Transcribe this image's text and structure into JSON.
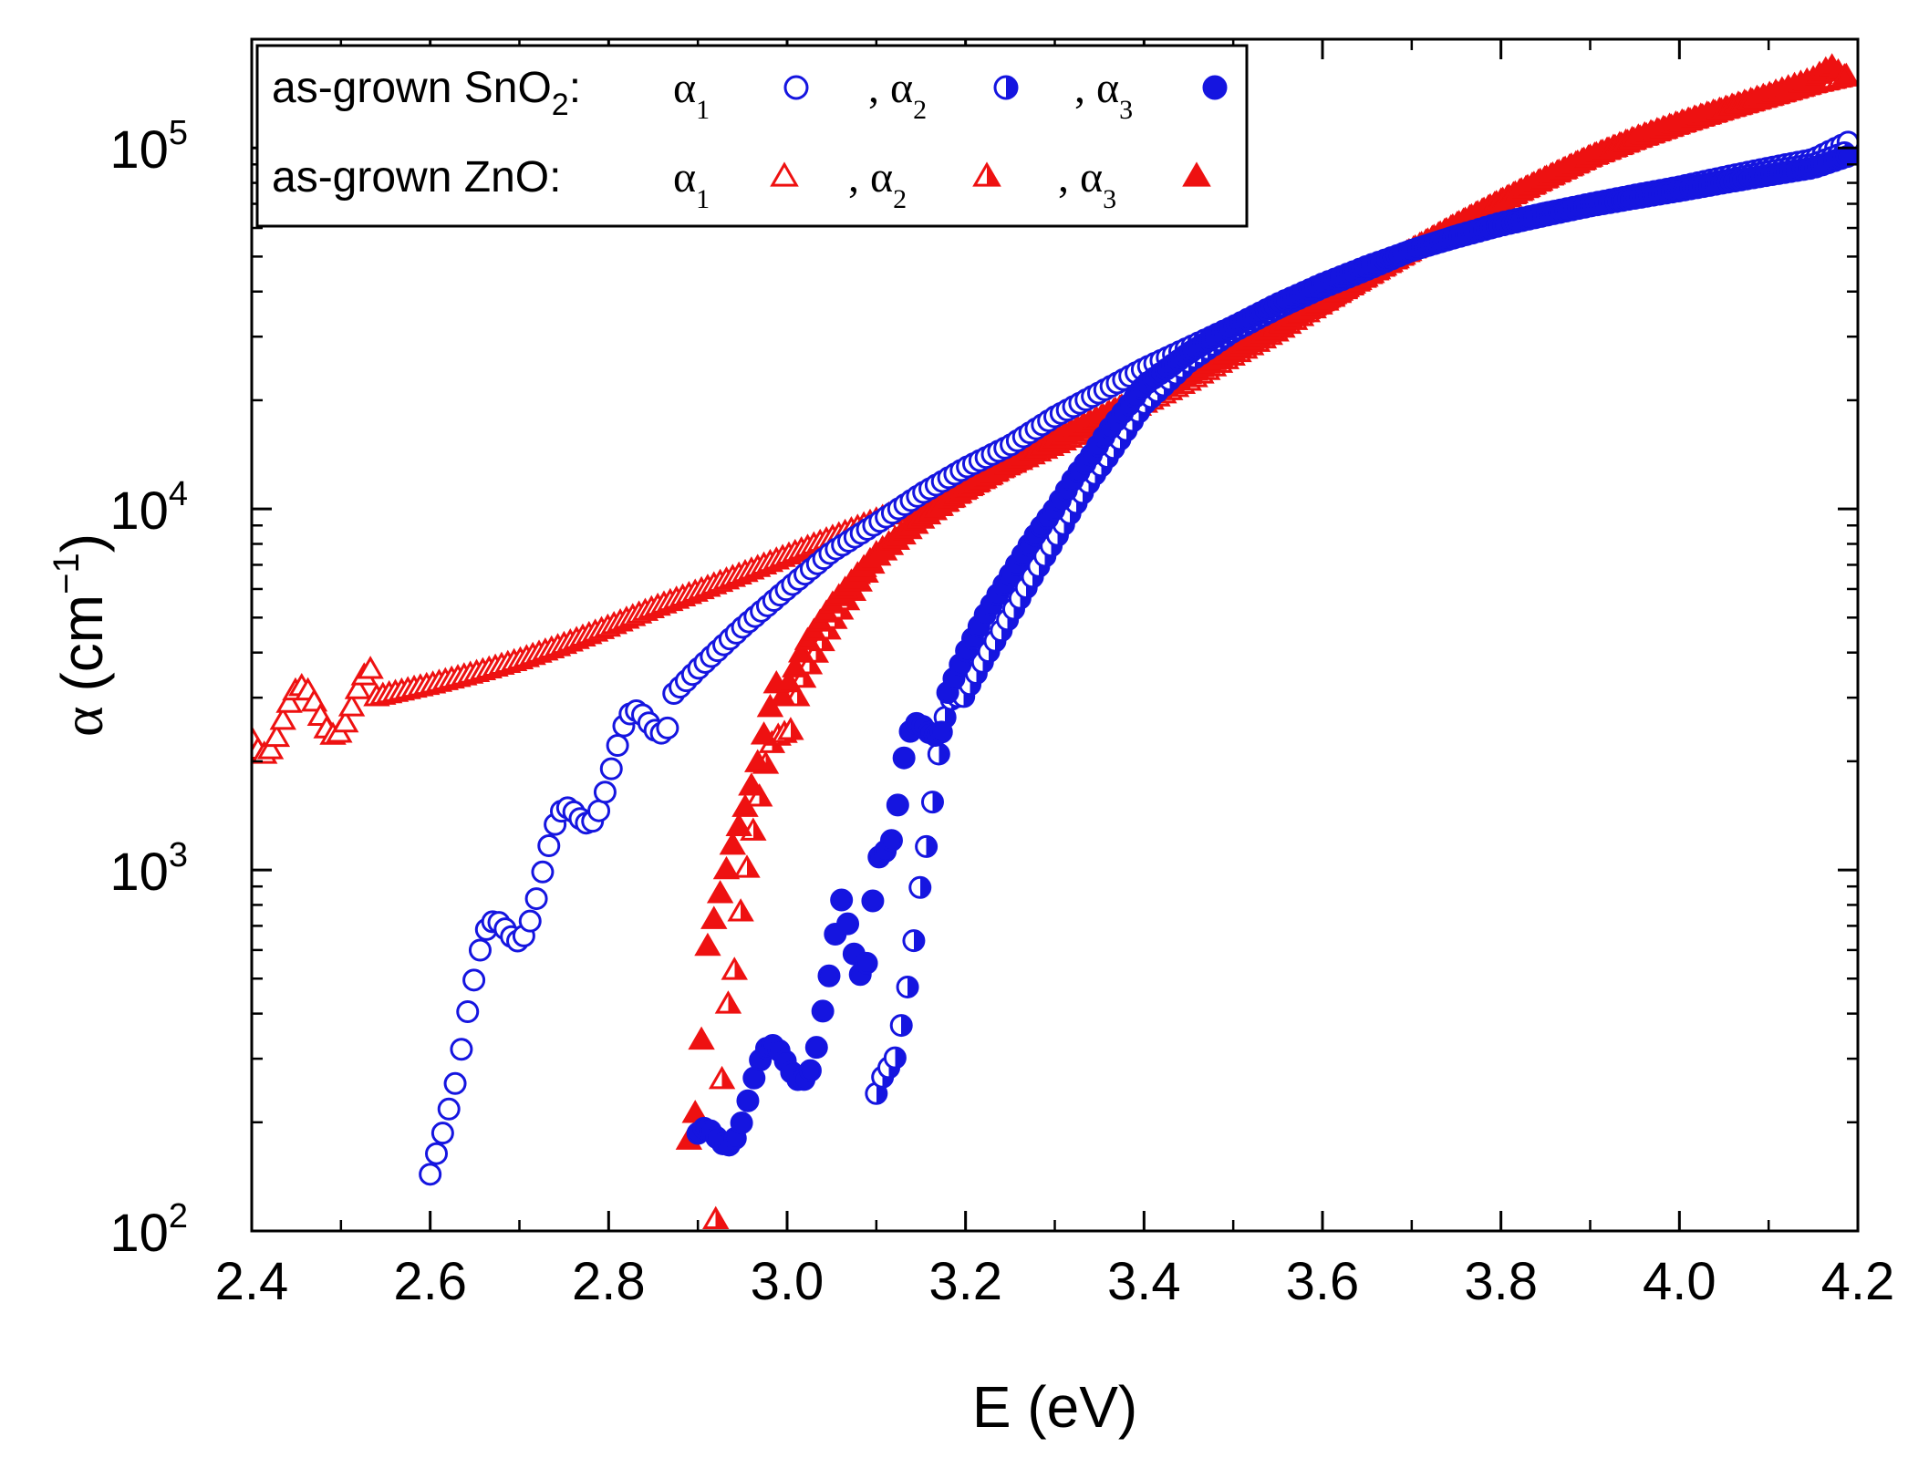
{
  "chart_data": {
    "type": "scatter",
    "xlabel": "E (eV)",
    "ylabel_symbol": "α",
    "ylabel_unit": "(cm",
    "ylabel_exp": "−1",
    "ylabel_close": ")",
    "xlim": [
      2.4,
      4.2
    ],
    "ylim": [
      100,
      200000
    ],
    "yscale": "log",
    "x_ticks": [
      "2.4",
      "2.6",
      "2.8",
      "3.0",
      "3.2",
      "3.4",
      "3.6",
      "3.8",
      "4.0",
      "4.2"
    ],
    "y_ticks": [
      {
        "base": "10",
        "exp": "2",
        "value": 100
      },
      {
        "base": "10",
        "exp": "3",
        "value": 1000
      },
      {
        "base": "10",
        "exp": "4",
        "value": 10000
      },
      {
        "base": "10",
        "exp": "5",
        "value": 100000
      }
    ],
    "legend": {
      "placement": "top-left",
      "rows": [
        {
          "material": "as-grown SnO",
          "subscript": "2",
          "suffix": ":",
          "color": "#1515e0",
          "marker": "circle",
          "entries": [
            {
              "sym": "α",
              "sub": "1",
              "fill": "open"
            },
            {
              "sym": ", α",
              "sub": "2",
              "fill": "half"
            },
            {
              "sym": ", α",
              "sub": "3",
              "fill": "full"
            }
          ]
        },
        {
          "material": "as-grown ZnO",
          "subscript": "",
          "suffix": ":",
          "color": "#ee1111",
          "marker": "triangle",
          "entries": [
            {
              "sym": "α",
              "sub": "1",
              "fill": "open"
            },
            {
              "sym": ", α",
              "sub": "2",
              "fill": "half"
            },
            {
              "sym": ", α",
              "sub": "3",
              "fill": "full"
            }
          ]
        }
      ]
    },
    "series": [
      {
        "name": "SnO2 α1",
        "color": "#1515e0",
        "marker": "circle",
        "fill": "open",
        "curve": [
          [
            2.6,
            130
          ],
          [
            2.62,
            250
          ],
          [
            2.64,
            420
          ],
          [
            2.66,
            560
          ],
          [
            2.7,
            750
          ],
          [
            2.75,
            1250
          ],
          [
            2.8,
            1900
          ],
          [
            2.85,
            2700
          ],
          [
            2.9,
            3600
          ],
          [
            2.95,
            4700
          ],
          [
            3.0,
            6000
          ],
          [
            3.05,
            7600
          ],
          [
            3.1,
            9100
          ],
          [
            3.15,
            11000
          ],
          [
            3.2,
            13000
          ],
          [
            3.25,
            15000
          ],
          [
            3.3,
            18000
          ],
          [
            3.35,
            21000
          ],
          [
            3.4,
            24500
          ],
          [
            3.45,
            28000
          ],
          [
            3.5,
            32000
          ],
          [
            3.55,
            36000
          ],
          [
            3.6,
            41000
          ],
          [
            3.65,
            46000
          ],
          [
            3.7,
            52000
          ],
          [
            3.75,
            57000
          ],
          [
            3.8,
            62000
          ],
          [
            3.85,
            66000
          ],
          [
            3.9,
            70000
          ],
          [
            3.95,
            74000
          ],
          [
            4.0,
            78000
          ],
          [
            4.05,
            83000
          ],
          [
            4.1,
            88000
          ],
          [
            4.15,
            93000
          ],
          [
            4.19,
            104000
          ]
        ]
      },
      {
        "name": "SnO2 α2",
        "color": "#1515e0",
        "marker": "circle",
        "fill": "half",
        "curve": [
          [
            3.1,
            200
          ],
          [
            3.12,
            300
          ],
          [
            3.14,
            700
          ],
          [
            3.15,
            1050
          ],
          [
            3.16,
            1300
          ],
          [
            3.17,
            1800
          ],
          [
            3.18,
            2400
          ],
          [
            3.2,
            3100
          ],
          [
            3.22,
            3800
          ],
          [
            3.24,
            4600
          ],
          [
            3.26,
            5600
          ],
          [
            3.28,
            6800
          ],
          [
            3.3,
            8200
          ],
          [
            3.32,
            10000
          ],
          [
            3.34,
            12000
          ],
          [
            3.36,
            14000
          ],
          [
            3.38,
            16500
          ],
          [
            3.4,
            19500
          ],
          [
            3.45,
            25500
          ],
          [
            3.5,
            31000
          ],
          [
            3.55,
            36000
          ],
          [
            3.6,
            41500
          ],
          [
            3.65,
            46500
          ],
          [
            3.7,
            52000
          ],
          [
            3.75,
            57000
          ],
          [
            3.8,
            61500
          ],
          [
            3.85,
            66000
          ],
          [
            3.9,
            69500
          ],
          [
            3.95,
            73500
          ],
          [
            4.0,
            77000
          ],
          [
            4.05,
            81000
          ],
          [
            4.1,
            86000
          ],
          [
            4.15,
            90000
          ],
          [
            4.19,
            98000
          ]
        ]
      },
      {
        "name": "SnO2 α3",
        "color": "#1515e0",
        "marker": "circle",
        "fill": "full",
        "curve": [
          [
            2.9,
            155
          ],
          [
            2.96,
            250
          ],
          [
            3.03,
            330
          ],
          [
            3.05,
            480
          ],
          [
            3.06,
            700
          ],
          [
            3.08,
            520
          ],
          [
            3.09,
            650
          ],
          [
            3.1,
            1300
          ],
          [
            3.12,
            1200
          ],
          [
            3.13,
            1700
          ],
          [
            3.14,
            2100
          ],
          [
            3.16,
            2500
          ],
          [
            3.18,
            3100
          ],
          [
            3.2,
            4000
          ],
          [
            3.22,
            5000
          ],
          [
            3.24,
            6000
          ],
          [
            3.26,
            7200
          ],
          [
            3.28,
            8600
          ],
          [
            3.3,
            10000
          ],
          [
            3.32,
            12000
          ],
          [
            3.34,
            14000
          ],
          [
            3.36,
            16500
          ],
          [
            3.38,
            19000
          ],
          [
            3.4,
            22000
          ],
          [
            3.45,
            27000
          ],
          [
            3.5,
            32000
          ],
          [
            3.55,
            37000
          ],
          [
            3.6,
            42000
          ],
          [
            3.65,
            47000
          ],
          [
            3.7,
            52000
          ],
          [
            3.75,
            56500
          ],
          [
            3.8,
            61000
          ],
          [
            3.85,
            65000
          ],
          [
            3.9,
            69000
          ],
          [
            3.95,
            72500
          ],
          [
            4.0,
            76000
          ],
          [
            4.05,
            80000
          ],
          [
            4.1,
            84000
          ],
          [
            4.15,
            88000
          ],
          [
            4.19,
            95000
          ]
        ]
      },
      {
        "name": "ZnO α1",
        "color": "#ee1111",
        "marker": "triangle",
        "fill": "open",
        "curve": [
          [
            2.4,
            2450
          ],
          [
            2.45,
            2650
          ],
          [
            2.5,
            2850
          ],
          [
            2.55,
            3050
          ],
          [
            2.6,
            3250
          ],
          [
            2.65,
            3500
          ],
          [
            2.7,
            3800
          ],
          [
            2.75,
            4200
          ],
          [
            2.8,
            4700
          ],
          [
            2.85,
            5300
          ],
          [
            2.9,
            5900
          ],
          [
            2.95,
            6600
          ],
          [
            3.0,
            7400
          ],
          [
            3.05,
            8300
          ],
          [
            3.1,
            9300
          ],
          [
            3.15,
            10400
          ],
          [
            3.2,
            11800
          ],
          [
            3.25,
            13200
          ],
          [
            3.3,
            15000
          ],
          [
            3.35,
            17000
          ],
          [
            3.4,
            19500
          ],
          [
            3.45,
            22500
          ],
          [
            3.5,
            26500
          ],
          [
            3.55,
            31000
          ],
          [
            3.6,
            37000
          ],
          [
            3.65,
            44000
          ],
          [
            3.7,
            52000
          ],
          [
            3.75,
            61000
          ],
          [
            3.8,
            71000
          ],
          [
            3.85,
            82000
          ],
          [
            3.9,
            94000
          ],
          [
            3.95,
            105000
          ],
          [
            4.0,
            116000
          ],
          [
            4.05,
            127000
          ],
          [
            4.1,
            138000
          ],
          [
            4.15,
            150000
          ],
          [
            4.19,
            158000
          ]
        ]
      },
      {
        "name": "ZnO α2",
        "color": "#ee1111",
        "marker": "triangle",
        "fill": "half",
        "curve": [
          [
            2.92,
            110
          ],
          [
            2.93,
            450
          ],
          [
            2.94,
            600
          ],
          [
            2.95,
            950
          ],
          [
            2.97,
            1400
          ],
          [
            2.98,
            1800
          ],
          [
            3.0,
            2500
          ],
          [
            3.02,
            3500
          ],
          [
            3.05,
            4800
          ],
          [
            3.08,
            6200
          ],
          [
            3.1,
            7300
          ],
          [
            3.15,
            9300
          ],
          [
            3.2,
            11300
          ],
          [
            3.25,
            13300
          ],
          [
            3.3,
            15500
          ],
          [
            3.35,
            17800
          ],
          [
            3.4,
            20500
          ],
          [
            3.45,
            23500
          ],
          [
            3.5,
            27500
          ],
          [
            3.55,
            32000
          ],
          [
            3.6,
            37500
          ],
          [
            3.65,
            44000
          ],
          [
            3.7,
            52000
          ],
          [
            3.75,
            61000
          ],
          [
            3.8,
            71000
          ],
          [
            3.85,
            82000
          ],
          [
            3.9,
            94000
          ],
          [
            3.95,
            105000
          ],
          [
            4.0,
            116000
          ],
          [
            4.05,
            127000
          ],
          [
            4.1,
            138000
          ],
          [
            4.15,
            150000
          ],
          [
            4.19,
            158000
          ]
        ]
      },
      {
        "name": "ZnO α3",
        "color": "#ee1111",
        "marker": "triangle",
        "fill": "full",
        "curve": [
          [
            2.89,
            190
          ],
          [
            2.9,
            210
          ],
          [
            2.91,
            500
          ],
          [
            2.92,
            640
          ],
          [
            2.93,
            900
          ],
          [
            2.94,
            1300
          ],
          [
            2.95,
            1700
          ],
          [
            2.96,
            2000
          ],
          [
            2.98,
            2500
          ],
          [
            3.0,
            3200
          ],
          [
            3.02,
            4200
          ],
          [
            3.05,
            5400
          ],
          [
            3.08,
            6600
          ],
          [
            3.1,
            7500
          ],
          [
            3.15,
            9400
          ],
          [
            3.2,
            11300
          ],
          [
            3.25,
            13300
          ],
          [
            3.3,
            15500
          ],
          [
            3.35,
            17800
          ],
          [
            3.4,
            20500
          ],
          [
            3.45,
            23500
          ],
          [
            3.5,
            27500
          ],
          [
            3.55,
            32000
          ],
          [
            3.6,
            37500
          ],
          [
            3.65,
            44000
          ],
          [
            3.7,
            52000
          ],
          [
            3.75,
            61000
          ],
          [
            3.8,
            71000
          ],
          [
            3.85,
            82000
          ],
          [
            3.9,
            94000
          ],
          [
            3.95,
            106000
          ],
          [
            4.0,
            117000
          ],
          [
            4.05,
            128000
          ],
          [
            4.1,
            140000
          ],
          [
            4.15,
            155000
          ],
          [
            4.17,
            168000
          ],
          [
            4.19,
            153000
          ]
        ]
      }
    ]
  }
}
